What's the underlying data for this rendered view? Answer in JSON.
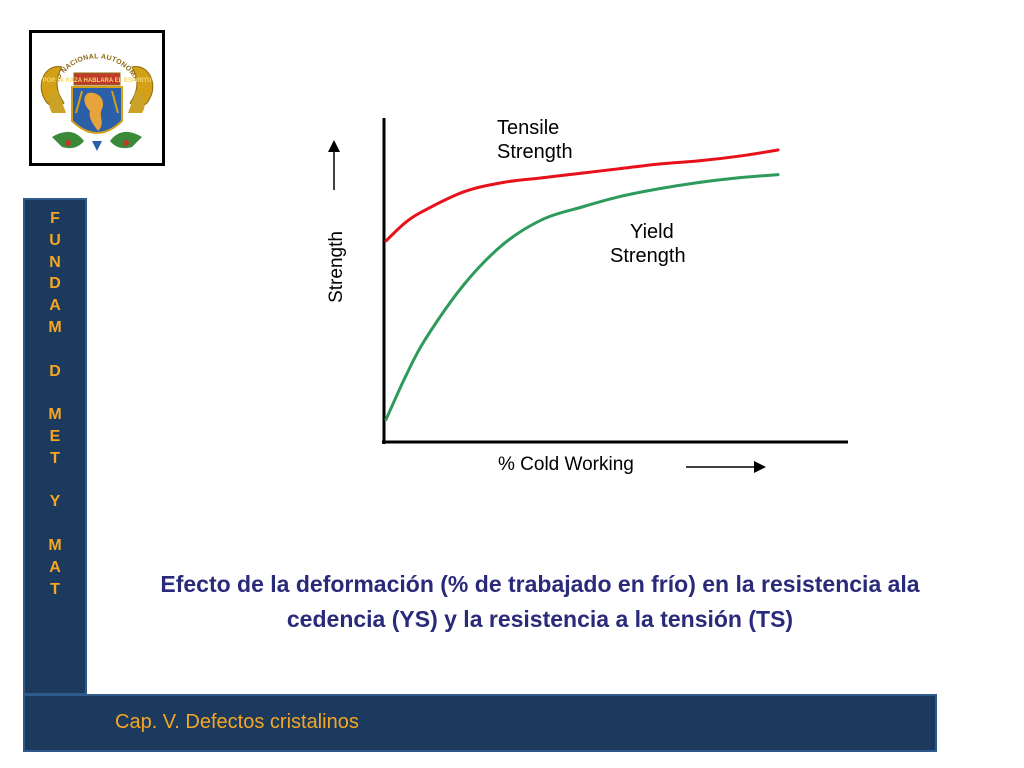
{
  "logo": {
    "icon": "university-seal-icon",
    "text": "UNIVERSIDAD NACIONAL AUTONOMA DE MEXICO",
    "motto": "POR MI RAZA HABLARA EL ESPIRITU",
    "colors": {
      "gold": "#d4a017",
      "red": "#c0392b",
      "blue": "#2b5fa8",
      "green": "#3a8a3a"
    }
  },
  "sidebar": {
    "letters": [
      "F",
      "U",
      "N",
      "D",
      "A",
      "M",
      "",
      "D",
      "",
      "M",
      "E",
      "T",
      "",
      "Y",
      "",
      "M",
      "A",
      "T"
    ],
    "color": "#f5a623",
    "background": "#1c3a5e"
  },
  "chart_data": {
    "type": "line",
    "xlabel": "% Cold Working",
    "ylabel": "Strength",
    "xlim": [
      0,
      100
    ],
    "ylim": [
      0,
      100
    ],
    "grid": false,
    "series": [
      {
        "name": "Tensile Strength",
        "color": "#e8111b",
        "x": [
          0,
          5,
          10,
          20,
          30,
          40,
          50,
          60,
          70,
          80,
          90,
          100
        ],
        "y": [
          64,
          70,
          74,
          80,
          83,
          84.5,
          86,
          87.5,
          89,
          90,
          91.5,
          93.5
        ]
      },
      {
        "name": "Yield Strength",
        "color": "#2e9a5b",
        "x": [
          0,
          5,
          10,
          20,
          30,
          40,
          50,
          60,
          70,
          80,
          90,
          100
        ],
        "y": [
          6,
          20,
          32,
          50,
          63,
          71,
          75,
          78.5,
          81,
          83,
          84.5,
          85.5
        ]
      }
    ]
  },
  "caption": "Efecto de la deformación (% de trabajado en frío) en la resistencia ala cedencia (YS)  y la resistencia a la tensión (TS)",
  "footer": {
    "title": "Cap. V. Defectos cristalinos",
    "title_color": "#f5a623",
    "background": "#1c3a5e"
  }
}
